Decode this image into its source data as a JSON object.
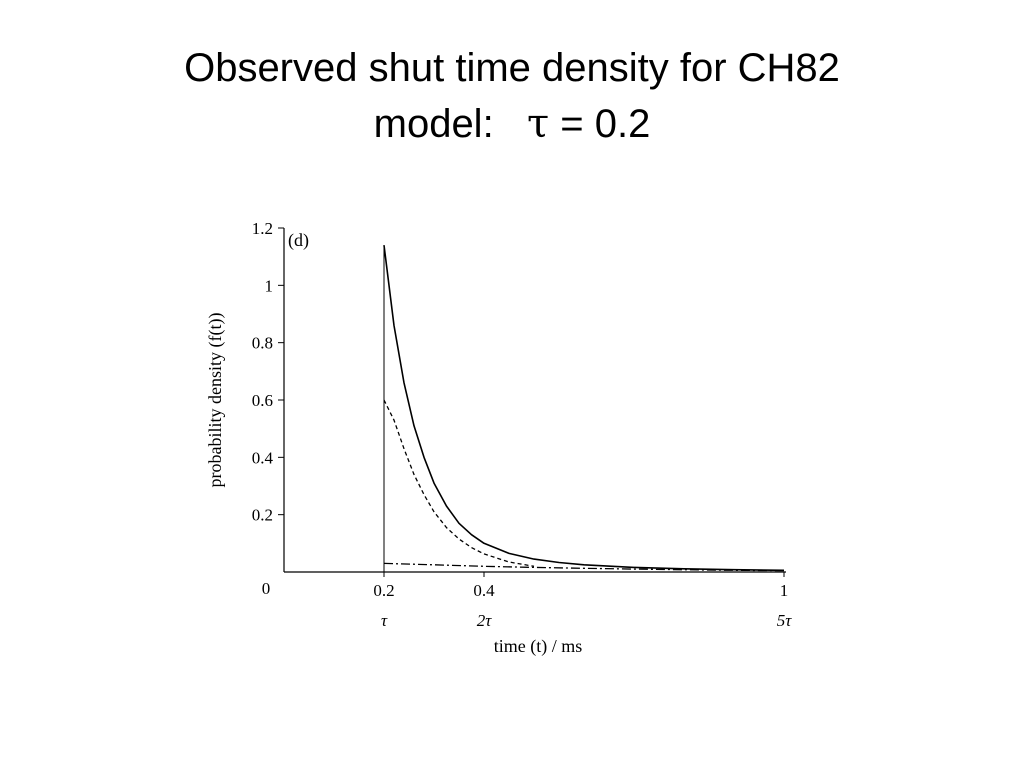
{
  "slide": {
    "title_line1": "Observed shut time density for CH82",
    "title_line2_prefix": "model:",
    "title_line2_symbol": "τ",
    "title_line2_suffix": " = 0.2"
  },
  "chart_data": {
    "type": "line",
    "panel_label": "(d)",
    "xlabel": "time (t) / ms",
    "ylabel": "probability density (f(t))",
    "xlim": [
      0,
      1
    ],
    "ylim": [
      0,
      1.2
    ],
    "x_ticks": [
      {
        "value": 0.2,
        "label": "0.2",
        "sublabel": "τ"
      },
      {
        "value": 0.4,
        "label": "0.4",
        "sublabel": "2τ"
      },
      {
        "value": 1,
        "label": "1",
        "sublabel": "5τ"
      }
    ],
    "origin_label": "0",
    "y_ticks": [
      {
        "value": 0.2,
        "label": "0.2"
      },
      {
        "value": 0.4,
        "label": "0.4"
      },
      {
        "value": 0.6,
        "label": "0.6"
      },
      {
        "value": 0.8,
        "label": "0.8"
      },
      {
        "value": 1,
        "label": "1"
      },
      {
        "value": 1.2,
        "label": "1.2"
      }
    ],
    "dead_time_line": {
      "x": 0.2,
      "y_top": 1.14
    },
    "series": [
      {
        "style": "solid",
        "x": [
          0.2,
          0.22,
          0.24,
          0.26,
          0.28,
          0.3,
          0.325,
          0.35,
          0.375,
          0.4,
          0.45,
          0.5,
          0.55,
          0.6,
          0.7,
          0.8,
          0.9,
          1.0
        ],
        "y": [
          1.14,
          0.86,
          0.66,
          0.51,
          0.4,
          0.31,
          0.23,
          0.17,
          0.13,
          0.1,
          0.065,
          0.045,
          0.033,
          0.025,
          0.016,
          0.011,
          0.008,
          0.006
        ]
      },
      {
        "style": "dashed",
        "x": [
          0.2,
          0.22,
          0.24,
          0.26,
          0.28,
          0.3,
          0.325,
          0.35,
          0.375,
          0.4,
          0.45,
          0.5
        ],
        "y": [
          0.6,
          0.53,
          0.43,
          0.34,
          0.27,
          0.21,
          0.155,
          0.115,
          0.085,
          0.063,
          0.035,
          0.02
        ]
      },
      {
        "style": "dash-dot",
        "x": [
          0.2,
          0.3,
          0.4,
          0.5,
          0.6,
          0.7,
          0.8,
          0.9,
          1.0
        ],
        "y": [
          0.03,
          0.025,
          0.02,
          0.016,
          0.013,
          0.01,
          0.008,
          0.006,
          0.005
        ]
      }
    ]
  }
}
